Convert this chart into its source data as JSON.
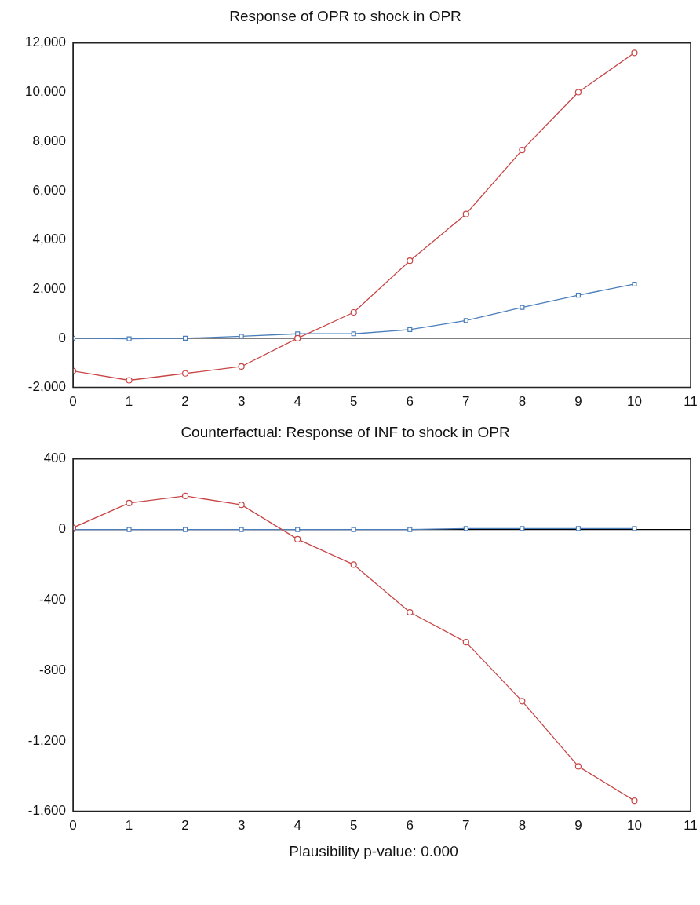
{
  "chart_data": [
    {
      "type": "line",
      "title": "Response of OPR to shock in OPR",
      "x": [
        0,
        1,
        2,
        3,
        4,
        5,
        6,
        7,
        8,
        9,
        10
      ],
      "xlim": [
        0,
        11
      ],
      "xticks": [
        0,
        1,
        2,
        3,
        4,
        5,
        6,
        7,
        8,
        9,
        10,
        11
      ],
      "ylim": [
        -2000,
        12000
      ],
      "yticks": [
        {
          "value": -2000,
          "label": "-2,000"
        },
        0,
        {
          "value": 2000,
          "label": "2,000"
        },
        {
          "value": 4000,
          "label": "4,000"
        },
        {
          "value": 6000,
          "label": "6,000"
        },
        {
          "value": 8000,
          "label": "8,000"
        },
        {
          "value": 10000,
          "label": "10,000"
        },
        {
          "value": 12000,
          "label": "12,000"
        }
      ],
      "grid": false,
      "legend": false,
      "line_style": "solid",
      "ref_lines": [
        {
          "axis": "y",
          "value": 0,
          "color": "#000000"
        }
      ],
      "series": [
        {
          "color": "#c84646",
          "marker": "circle",
          "values": [
            -1330,
            -1710,
            -1430,
            -1150,
            0,
            1050,
            3150,
            5050,
            7650,
            10000,
            11600
          ]
        },
        {
          "color": "#4a7ebb",
          "marker": "square",
          "values": [
            0,
            -20,
            0,
            80,
            180,
            180,
            350,
            720,
            1250,
            1750,
            2200
          ]
        }
      ]
    },
    {
      "type": "line",
      "title": "Counterfactual: Response of INF to shock in OPR",
      "x": [
        0,
        1,
        2,
        3,
        4,
        5,
        6,
        7,
        8,
        9,
        10
      ],
      "xlim": [
        0,
        11
      ],
      "xticks": [
        0,
        1,
        2,
        3,
        4,
        5,
        6,
        7,
        8,
        9,
        10,
        11
      ],
      "ylim": [
        -1600,
        400
      ],
      "yticks": [
        {
          "value": -1600,
          "label": "-1,600"
        },
        {
          "value": -1200,
          "label": "-1,200"
        },
        -800,
        -400,
        0,
        400
      ],
      "grid": false,
      "legend": false,
      "line_style": "solid",
      "ref_lines": [
        {
          "axis": "y",
          "value": 0,
          "color": "#000000"
        }
      ],
      "annotations": [
        "Plausibility p-value: 0.000"
      ],
      "series": [
        {
          "color": "#c84646",
          "marker": "circle",
          "values": [
            10,
            150,
            190,
            140,
            -55,
            -200,
            -470,
            -640,
            -975,
            -1345,
            -1540
          ]
        },
        {
          "color": "#4a7ebb",
          "marker": "square",
          "values": [
            0,
            0,
            0,
            0,
            0,
            0,
            0,
            5,
            5,
            5,
            5
          ]
        }
      ]
    }
  ]
}
